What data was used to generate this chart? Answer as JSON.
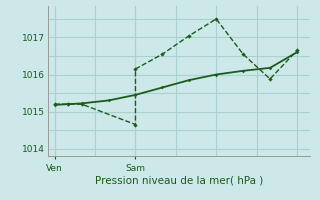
{
  "background_color": "#cce8e8",
  "grid_color": "#aad0d0",
  "line_color": "#1a5c1a",
  "title": "Pression niveau de la mer( hPa )",
  "ylabel_ticks": [
    1014,
    1015,
    1016,
    1017
  ],
  "ven_x": 0,
  "sam_x": 6,
  "line1_x": [
    0,
    1,
    2,
    6,
    6,
    8,
    10,
    12,
    14,
    16,
    18
  ],
  "line1_y": [
    1015.2,
    1015.2,
    1015.2,
    1014.65,
    1016.15,
    1016.55,
    1017.05,
    1017.5,
    1016.55,
    1015.88,
    1016.65
  ],
  "line2_x": [
    0,
    1,
    2,
    4,
    6,
    8,
    10,
    12,
    14,
    16,
    18
  ],
  "line2_y": [
    1015.18,
    1015.2,
    1015.22,
    1015.3,
    1015.45,
    1015.65,
    1015.85,
    1016.0,
    1016.1,
    1016.18,
    1016.6
  ],
  "xlim": [
    -0.5,
    19
  ],
  "ylim": [
    1013.8,
    1017.85
  ],
  "x_gridlines": [
    0,
    3,
    6,
    9,
    12,
    15,
    18
  ]
}
